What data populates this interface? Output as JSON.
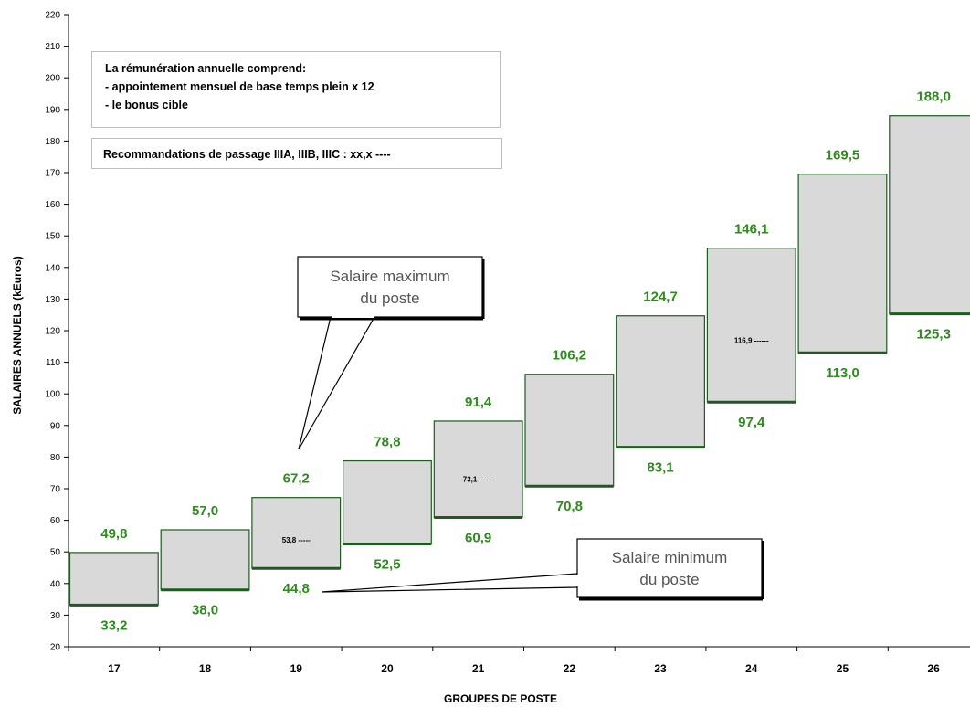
{
  "chart_data": {
    "type": "floating-bar",
    "ylabel": "SALAIRES ANNUELS (kEuros)",
    "xlabel": "GROUPES DE POSTE",
    "ylim": [
      20,
      220
    ],
    "y_ticks": [
      "20",
      "30",
      "40",
      "50",
      "60",
      "70",
      "80",
      "90",
      "100",
      "110",
      "120",
      "130",
      "140",
      "150",
      "160",
      "170",
      "180",
      "190",
      "200",
      "210",
      "220"
    ],
    "categories": [
      "17",
      "18",
      "19",
      "20",
      "21",
      "22",
      "23",
      "24",
      "25",
      "26"
    ],
    "min_values": [
      33.2,
      38.0,
      44.8,
      52.5,
      60.9,
      70.8,
      83.1,
      97.4,
      113.0,
      125.3
    ],
    "max_values": [
      49.8,
      57.0,
      67.2,
      78.8,
      91.4,
      106.2,
      124.7,
      146.1,
      169.5,
      188.0
    ],
    "min_labels": [
      "33,2",
      "38,0",
      "44,8",
      "52,5",
      "60,9",
      "70,8",
      "83,1",
      "97,4",
      "113,0",
      "125,3"
    ],
    "max_labels": [
      "49,8",
      "57,0",
      "67,2",
      "78,8",
      "91,4",
      "106,2",
      "124,7",
      "146,1",
      "169,5",
      "188,0"
    ],
    "midpoints": [
      {
        "category": "19",
        "value": 53.8,
        "label": "53,8 -----"
      },
      {
        "category": "21",
        "value": 73.1,
        "label": "73,1 ------"
      },
      {
        "category": "24",
        "value": 116.9,
        "label": "116,9  ------"
      }
    ],
    "grid": false,
    "colors": {
      "bar_fill": "#d9d9d9",
      "bar_border": "#1f5a1f",
      "value_text": "#2e8b1e"
    }
  },
  "notes": {
    "remuneration": {
      "line1": "La rémunération annuelle comprend:",
      "line2": "- appointement mensuel de base temps plein x 12",
      "line3": "- le bonus cible"
    },
    "recommandations": "Recommandations de passage IIIA, IIIB, IIIC :   xx,x ----"
  },
  "callouts": {
    "max": {
      "line1": "Salaire maximum",
      "line2": "du poste"
    },
    "min": {
      "line1": "Salaire minimum",
      "line2": "du poste"
    }
  }
}
